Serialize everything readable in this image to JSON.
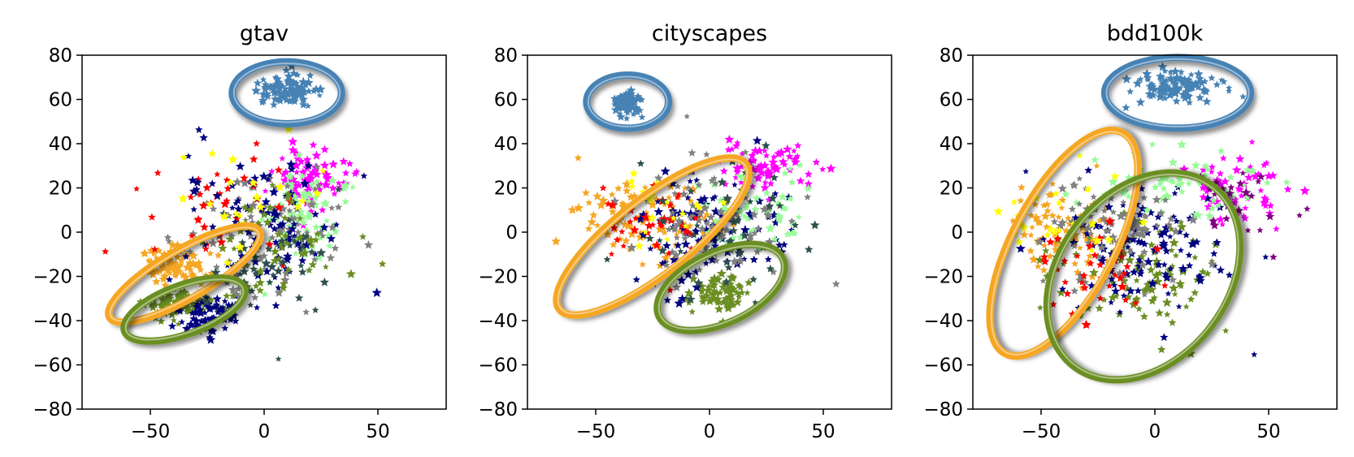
{
  "chart_data": [
    {
      "type": "scatter",
      "title": "gtav",
      "xlabel": "",
      "ylabel": "",
      "xlim": [
        -80,
        80
      ],
      "ylim": [
        -80,
        80
      ],
      "xticks": [
        "−50",
        "0",
        "50"
      ],
      "yticks": [
        "80",
        "60",
        "40",
        "20",
        "0",
        "−20",
        "−40",
        "−60",
        "−80"
      ],
      "grid": false,
      "marker": "star",
      "clusters": [
        {
          "color": "#4682b4",
          "center": [
            10,
            64
          ],
          "spread": [
            12,
            7
          ],
          "count": 110
        },
        {
          "color": "#f5a623",
          "center": [
            -40,
            -15
          ],
          "spread": [
            16,
            9
          ],
          "count": 90
        },
        {
          "color": "#6b8e23",
          "center": [
            -38,
            -32
          ],
          "spread": [
            14,
            7
          ],
          "count": 80
        },
        {
          "color": "#000080",
          "center": [
            -25,
            -38
          ],
          "spread": [
            15,
            8
          ],
          "count": 70
        },
        {
          "color": "#ff00ff",
          "center": [
            20,
            25
          ],
          "spread": [
            16,
            14
          ],
          "count": 80
        },
        {
          "color": "#98fb98",
          "center": [
            15,
            5
          ],
          "spread": [
            25,
            22
          ],
          "count": 80
        },
        {
          "color": "#808080",
          "center": [
            0,
            0
          ],
          "spread": [
            35,
            28
          ],
          "count": 90
        },
        {
          "color": "#ff0000",
          "center": [
            -20,
            10
          ],
          "spread": [
            30,
            25
          ],
          "count": 40
        },
        {
          "color": "#000080",
          "center": [
            0,
            5
          ],
          "spread": [
            35,
            30
          ],
          "count": 90
        },
        {
          "color": "#2f4f4f",
          "center": [
            5,
            -10
          ],
          "spread": [
            35,
            28
          ],
          "count": 50
        },
        {
          "color": "#ffff00",
          "center": [
            -10,
            15
          ],
          "spread": [
            30,
            25
          ],
          "count": 25
        },
        {
          "color": "#6b8e23",
          "center": [
            0,
            -5
          ],
          "spread": [
            35,
            28
          ],
          "count": 60
        }
      ],
      "highlights": [
        {
          "color": "#4682b4",
          "center": [
            10,
            63
          ],
          "radii": [
            24,
            14
          ],
          "angle": 0
        },
        {
          "color": "#f5a623",
          "center": [
            -35,
            -19
          ],
          "radii": [
            38,
            11
          ],
          "angle": -30
        },
        {
          "color": "#6b8e23",
          "center": [
            -35,
            -35
          ],
          "radii": [
            28,
            11
          ],
          "angle": -20
        }
      ]
    },
    {
      "type": "scatter",
      "title": "cityscapes",
      "xlabel": "",
      "ylabel": "",
      "xlim": [
        -80,
        80
      ],
      "ylim": [
        -80,
        80
      ],
      "xticks": [
        "−50",
        "0",
        "50"
      ],
      "yticks": [
        "80",
        "60",
        "40",
        "20",
        "0",
        "−20",
        "−40",
        "−60",
        "−80"
      ],
      "grid": false,
      "marker": "star",
      "clusters": [
        {
          "color": "#4682b4",
          "center": [
            -36,
            58
          ],
          "spread": [
            7,
            5
          ],
          "count": 70
        },
        {
          "color": "#f5a623",
          "center": [
            -30,
            5
          ],
          "spread": [
            28,
            16
          ],
          "count": 90
        },
        {
          "color": "#6b8e23",
          "center": [
            5,
            -28
          ],
          "spread": [
            14,
            9
          ],
          "count": 70
        },
        {
          "color": "#000080",
          "center": [
            0,
            0
          ],
          "spread": [
            30,
            25
          ],
          "count": 110
        },
        {
          "color": "#ff00ff",
          "center": [
            25,
            30
          ],
          "spread": [
            22,
            10
          ],
          "count": 70
        },
        {
          "color": "#98fb98",
          "center": [
            20,
            10
          ],
          "spread": [
            25,
            18
          ],
          "count": 60
        },
        {
          "color": "#808080",
          "center": [
            0,
            5
          ],
          "spread": [
            35,
            25
          ],
          "count": 90
        },
        {
          "color": "#ff0000",
          "center": [
            -25,
            5
          ],
          "spread": [
            25,
            20
          ],
          "count": 35
        },
        {
          "color": "#2f4f4f",
          "center": [
            5,
            0
          ],
          "spread": [
            35,
            28
          ],
          "count": 50
        },
        {
          "color": "#ffff00",
          "center": [
            -20,
            10
          ],
          "spread": [
            25,
            20
          ],
          "count": 20
        }
      ],
      "highlights": [
        {
          "color": "#4682b4",
          "center": [
            -36,
            59
          ],
          "radii": [
            18,
            12
          ],
          "angle": 0
        },
        {
          "color": "#f5a623",
          "center": [
            -25,
            -2
          ],
          "radii": [
            52,
            17
          ],
          "angle": -38
        },
        {
          "color": "#6b8e23",
          "center": [
            5,
            -25
          ],
          "radii": [
            30,
            16
          ],
          "angle": -25
        }
      ]
    },
    {
      "type": "scatter",
      "title": "bdd100k",
      "xlabel": "",
      "ylabel": "",
      "xlim": [
        -80,
        80
      ],
      "ylim": [
        -80,
        80
      ],
      "xticks": [
        "−50",
        "0",
        "50"
      ],
      "yticks": [
        "80",
        "60",
        "40",
        "20",
        "0",
        "−20",
        "−40",
        "−60",
        "−80"
      ],
      "grid": false,
      "marker": "star",
      "clusters": [
        {
          "color": "#4682b4",
          "center": [
            10,
            66
          ],
          "spread": [
            20,
            7
          ],
          "count": 110
        },
        {
          "color": "#f5a623",
          "center": [
            -40,
            0
          ],
          "spread": [
            22,
            22
          ],
          "count": 80
        },
        {
          "color": "#6b8e23",
          "center": [
            -10,
            -20
          ],
          "spread": [
            35,
            25
          ],
          "count": 100
        },
        {
          "color": "#000080",
          "center": [
            -5,
            -10
          ],
          "spread": [
            38,
            30
          ],
          "count": 110
        },
        {
          "color": "#ff00ff",
          "center": [
            35,
            20
          ],
          "spread": [
            25,
            15
          ],
          "count": 60
        },
        {
          "color": "#98fb98",
          "center": [
            10,
            20
          ],
          "spread": [
            35,
            15
          ],
          "count": 60
        },
        {
          "color": "#808080",
          "center": [
            -15,
            0
          ],
          "spread": [
            35,
            25
          ],
          "count": 90
        },
        {
          "color": "#800080",
          "center": [
            40,
            10
          ],
          "spread": [
            25,
            20
          ],
          "count": 25
        },
        {
          "color": "#ff0000",
          "center": [
            -25,
            -20
          ],
          "spread": [
            30,
            20
          ],
          "count": 40
        },
        {
          "color": "#ffff00",
          "center": [
            -40,
            10
          ],
          "spread": [
            25,
            20
          ],
          "count": 25
        }
      ],
      "highlights": [
        {
          "color": "#4682b4",
          "center": [
            10,
            63
          ],
          "radii": [
            32,
            16
          ],
          "angle": 0
        },
        {
          "color": "#f5a623",
          "center": [
            -40,
            -5
          ],
          "radii": [
            55,
            23
          ],
          "angle": -62
        },
        {
          "color": "#6b8e23",
          "center": [
            -5,
            -20
          ],
          "radii": [
            50,
            38
          ],
          "angle": -52
        }
      ]
    }
  ]
}
